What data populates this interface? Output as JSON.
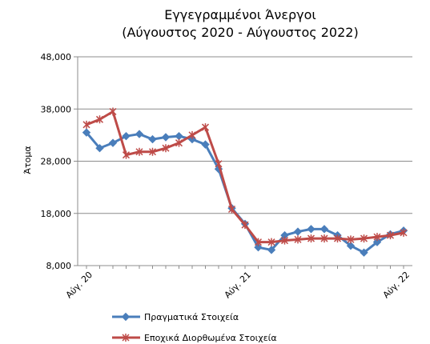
{
  "chart_data": {
    "type": "line",
    "title": "Εγγεγραμμένοι Άνεργοι",
    "subtitle": "(Αύγουστος 2020  - Αύγουστος 2022)",
    "xlabel": "",
    "ylabel": "Άτομα",
    "ylim": [
      8000,
      48000
    ],
    "yticks": [
      8000,
      18000,
      28000,
      38000,
      48000
    ],
    "ytick_labels": [
      "8,000",
      "18,000",
      "28,000",
      "38,000",
      "48,000"
    ],
    "x": [
      "Αύγ. 20",
      "Σεπ. 20",
      "Οκτ. 20",
      "Νοέ. 20",
      "Δεκ. 20",
      "Ιαν. 21",
      "Φεβ. 21",
      "Μάρ. 21",
      "Απρ. 21",
      "Μάι. 21",
      "Ιούν. 21",
      "Ιούλ. 21",
      "Αύγ. 21",
      "Σεπ. 21",
      "Οκτ. 21",
      "Νοέ. 21",
      "Δεκ. 21",
      "Ιαν. 22",
      "Φεβ. 22",
      "Μάρ. 22",
      "Απρ. 22",
      "Μάι. 22",
      "Ιούν. 22",
      "Ιούλ. 22",
      "Αύγ. 22"
    ],
    "xtick_labels": [
      {
        "index": 0,
        "label": "Αύγ. 20"
      },
      {
        "index": 12,
        "label": "Αύγ. 21"
      },
      {
        "index": 24,
        "label": "Αύγ. 22"
      }
    ],
    "grid": "horizontal",
    "legend_position": "bottom",
    "series": [
      {
        "name": "Πραγματικά Στοιχεία",
        "color": "#4a7ebb",
        "marker": "diamond",
        "values": [
          33500,
          30500,
          31500,
          32800,
          33200,
          32200,
          32600,
          32800,
          32200,
          31200,
          26500,
          19000,
          16000,
          11500,
          11000,
          13800,
          14500,
          15000,
          15000,
          13800,
          11800,
          10500,
          12500,
          14000,
          14700
        ]
      },
      {
        "name": "Εποχικά Διορθωμένα Στοιχεία",
        "color": "#be4b48",
        "marker": "star",
        "values": [
          35000,
          36000,
          37500,
          29200,
          29800,
          29800,
          30500,
          31500,
          33000,
          34500,
          27500,
          18800,
          15800,
          12500,
          12500,
          12800,
          13000,
          13200,
          13200,
          13200,
          13000,
          13200,
          13500,
          13800,
          14300
        ]
      }
    ]
  }
}
